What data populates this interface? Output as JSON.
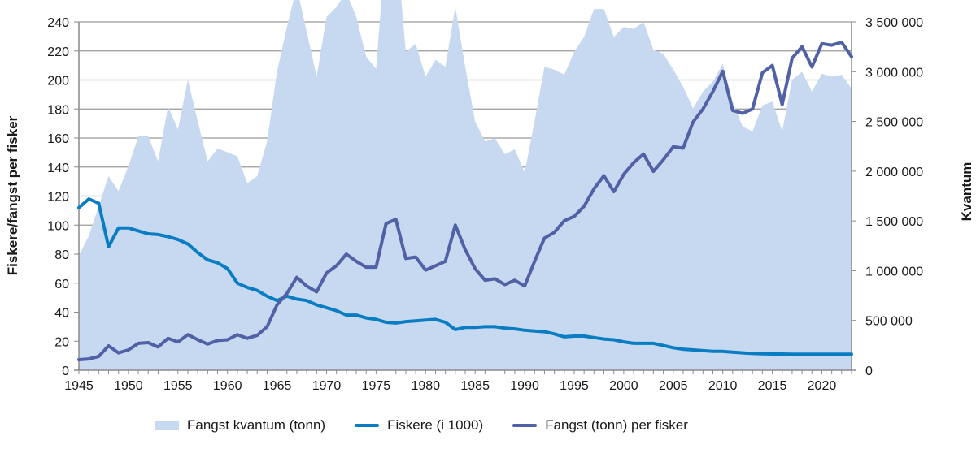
{
  "chart_data": {
    "type": "area+line",
    "title": "",
    "xlabel": "",
    "ylabel_left": "Fiskere/fangst per fisker",
    "ylabel_right": "Kvantum",
    "ylim_left": [
      0,
      240
    ],
    "ylim_right": [
      0,
      3500000
    ],
    "yticks_left": [
      0,
      20,
      40,
      60,
      80,
      100,
      120,
      140,
      160,
      180,
      200,
      220,
      240
    ],
    "yticks_right_labels": [
      "0",
      "500 000",
      "1 000 000",
      "1 500 000",
      "2 000 000",
      "2 500 000",
      "3 000 000",
      "3 500 000"
    ],
    "yticks_right": [
      0,
      500000,
      1000000,
      1500000,
      2000000,
      2500000,
      3000000,
      3500000
    ],
    "xticks": [
      1945,
      1950,
      1955,
      1960,
      1965,
      1970,
      1975,
      1980,
      1985,
      1990,
      1995,
      2000,
      2005,
      2010,
      2015,
      2020
    ],
    "grid": "horizontal",
    "legend_position": "bottom",
    "x": [
      1945,
      1946,
      1947,
      1948,
      1949,
      1950,
      1951,
      1952,
      1953,
      1954,
      1955,
      1956,
      1957,
      1958,
      1959,
      1960,
      1961,
      1962,
      1963,
      1964,
      1965,
      1966,
      1967,
      1968,
      1969,
      1970,
      1971,
      1972,
      1973,
      1974,
      1975,
      1976,
      1977,
      1978,
      1979,
      1980,
      1981,
      1982,
      1983,
      1984,
      1985,
      1986,
      1987,
      1988,
      1989,
      1990,
      1991,
      1992,
      1993,
      1994,
      1995,
      1996,
      1997,
      1998,
      1999,
      2000,
      2001,
      2002,
      2003,
      2004,
      2005,
      2006,
      2007,
      2008,
      2009,
      2010,
      2011,
      2012,
      2013,
      2014,
      2015,
      2016,
      2017,
      2018,
      2019,
      2020,
      2021,
      2022,
      2023
    ],
    "series": [
      {
        "name": "Fangst kvantum (tonn)",
        "type": "area",
        "axis": "right",
        "color": "#c6d9f0",
        "values": [
          1150000,
          1350000,
          1650000,
          1950000,
          1800000,
          2050000,
          2350000,
          2350000,
          2100000,
          2650000,
          2420000,
          2920000,
          2500000,
          2100000,
          2230000,
          2190000,
          2150000,
          1880000,
          1950000,
          2300000,
          3000000,
          3450000,
          3850000,
          3400000,
          2950000,
          3550000,
          3650000,
          3800000,
          3550000,
          3150000,
          3030000,
          4300000,
          4350000,
          3200000,
          3280000,
          2950000,
          3120000,
          3050000,
          3650000,
          3050000,
          2500000,
          2300000,
          2330000,
          2170000,
          2220000,
          1990000,
          2500000,
          3050000,
          3020000,
          2970000,
          3200000,
          3350000,
          3630000,
          3630000,
          3350000,
          3450000,
          3430000,
          3500000,
          3220000,
          3180000,
          3020000,
          2850000,
          2630000,
          2800000,
          2900000,
          3080000,
          2700000,
          2450000,
          2400000,
          2660000,
          2700000,
          2400000,
          2920000,
          3000000,
          2800000,
          2980000,
          2950000,
          2970000,
          2830000
        ]
      },
      {
        "name": "Fiskere (i 1000)",
        "type": "line",
        "axis": "left",
        "color": "#0a7dc2",
        "values": [
          112,
          118,
          115,
          85,
          98,
          98,
          96,
          94,
          93.5,
          92,
          90,
          87,
          81,
          76,
          74,
          70,
          60,
          57,
          55,
          51,
          48,
          51,
          49,
          48,
          45,
          43,
          41,
          38,
          38,
          36,
          35,
          33,
          32.5,
          33.5,
          34,
          34.5,
          35,
          33,
          28,
          29.5,
          29.5,
          30,
          30,
          29,
          28.5,
          27.5,
          27,
          26.5,
          25,
          23,
          23.5,
          23.5,
          22.5,
          21.5,
          21,
          19.5,
          18.5,
          18.5,
          18.5,
          17,
          15.5,
          14.5,
          14,
          13.5,
          13,
          13,
          12.5,
          12,
          11.5,
          11.3,
          11.2,
          11.2,
          11.1,
          11.1,
          11,
          11,
          11,
          11,
          11
        ]
      },
      {
        "name": "Fangst (tonn) per fisker",
        "type": "line",
        "axis": "left",
        "color": "#5161a5",
        "values": [
          7.3,
          7.8,
          9.5,
          16.8,
          12,
          14,
          18.5,
          19,
          16,
          22,
          19.5,
          24.5,
          21,
          18,
          20.5,
          21,
          24.5,
          22,
          24,
          30,
          45,
          53,
          64,
          58,
          54,
          67,
          72,
          80,
          75,
          71,
          71,
          101,
          104,
          77,
          78,
          69,
          72,
          75,
          100,
          83,
          70,
          62,
          63,
          59,
          62,
          58,
          75,
          91,
          95,
          103,
          106,
          113,
          125,
          134,
          123,
          135,
          143,
          149,
          137,
          145,
          154,
          153,
          171,
          180,
          192,
          206,
          179,
          177,
          180,
          205,
          210,
          183,
          215,
          223,
          209,
          225,
          224,
          226,
          216
        ]
      }
    ]
  },
  "legend": {
    "items": [
      {
        "label": "Fangst kvantum (tonn)",
        "color": "#c6d9f0"
      },
      {
        "label": "Fiskere (i 1000)",
        "color": "#0a7dc2"
      },
      {
        "label": "Fangst (tonn) per fisker",
        "color": "#5161a5"
      }
    ]
  }
}
